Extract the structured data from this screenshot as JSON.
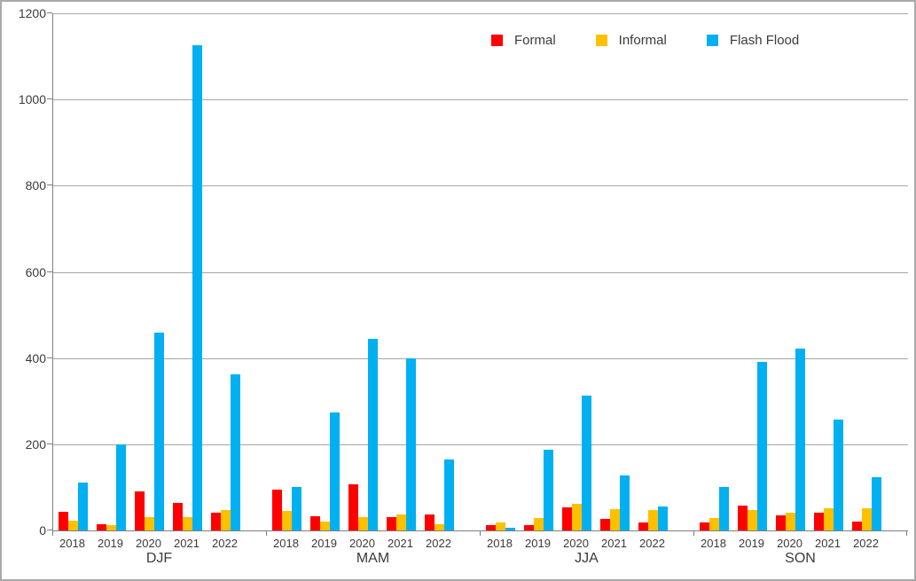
{
  "chart_data": {
    "type": "bar",
    "title": "",
    "xlabel": "",
    "ylabel": "",
    "ylim": [
      0,
      1200
    ],
    "ytick_interval": 200,
    "grid": true,
    "legend_position": "top",
    "groups": [
      "DJF",
      "MAM",
      "JJA",
      "SON"
    ],
    "categories_per_group": [
      "2018",
      "2019",
      "2020",
      "2021",
      "2022"
    ],
    "series": [
      {
        "name": "Formal",
        "color": "#ff0000",
        "values": [
          [
            44,
            14,
            90,
            63,
            42
          ],
          [
            95,
            33,
            108,
            30,
            38
          ],
          [
            13,
            12,
            53,
            26,
            18
          ],
          [
            18,
            57,
            34,
            42,
            21
          ]
        ]
      },
      {
        "name": "Informal",
        "color": "#ffc000",
        "values": [
          [
            22,
            12,
            31,
            31,
            48
          ],
          [
            45,
            20,
            30,
            38,
            15
          ],
          [
            18,
            28,
            62,
            50,
            48
          ],
          [
            29,
            47,
            42,
            52,
            52
          ]
        ]
      },
      {
        "name": "Flash Flood",
        "color": "#00b0f0",
        "values": [
          [
            111,
            200,
            459,
            1125,
            362
          ],
          [
            100,
            273,
            445,
            400,
            165
          ],
          [
            6,
            187,
            312,
            127,
            55
          ],
          [
            100,
            392,
            422,
            258,
            123
          ]
        ]
      }
    ],
    "colors": {
      "gridline": "#a6a6a6",
      "axis": "#7f7f7f",
      "text": "#3b3b3b",
      "background": "#ffffff",
      "frame_border": "#a9a9a9"
    }
  }
}
